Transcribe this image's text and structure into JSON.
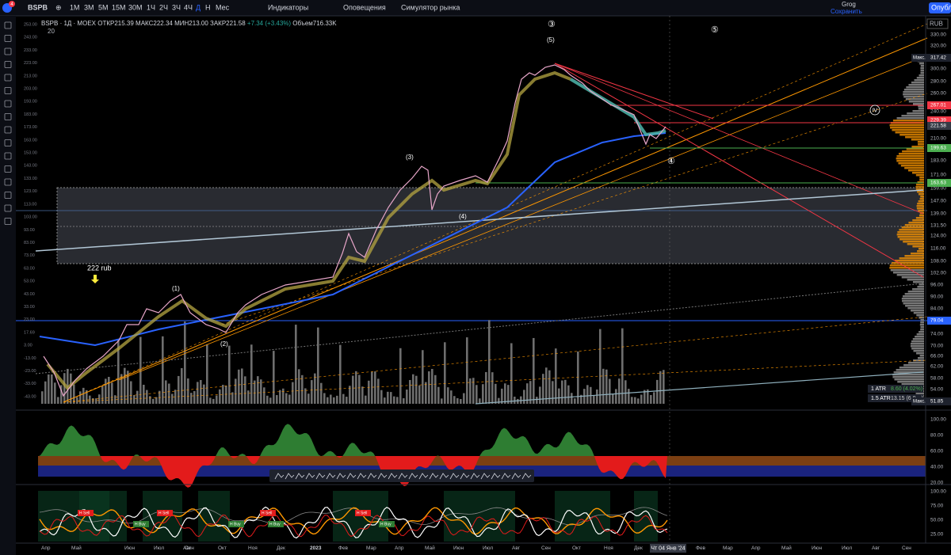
{
  "toolbar": {
    "badge": "4",
    "symbol": "BSPB",
    "intervals": [
      "1М",
      "3М",
      "5М",
      "15М",
      "30М",
      "1Ч",
      "2Ч",
      "3Ч",
      "4Ч",
      "Д",
      "Н",
      "Мес"
    ],
    "indicators": "Индикаторы",
    "alerts": "Оповещения",
    "replay": "Симулятор рынка",
    "user": "Grog",
    "save": "Сохранить",
    "publish": "Опубл"
  },
  "legend": {
    "title": "BSPB · 1Д · MOEX",
    "open": "ОТКР215.39",
    "high": "МАКС222.34",
    "low": "МИН213.00",
    "close": "ЗАКР221.58",
    "change": "+7.34 (+3.43%)",
    "volume": "Объем716.33K",
    "ema": "20"
  },
  "currency": "RUB",
  "price_axis": [
    "330.00",
    "320.00",
    "300.00",
    "280.00",
    "260.00",
    "240.00",
    "210.00",
    "183.00",
    "171.00",
    "159.00",
    "147.00",
    "139.00",
    "131.50",
    "124.00",
    "116.00",
    "108.00",
    "102.00",
    "96.00",
    "90.00",
    "84.00",
    "74.00",
    "70.00",
    "66.00",
    "62.00",
    "58.00",
    "54.00"
  ],
  "price_badges": [
    {
      "label": "Макс.",
      "value": "317.42"
    },
    {
      "value": "267.01"
    },
    {
      "value": "229.39"
    },
    {
      "value": "221.58"
    },
    {
      "value": "199.63"
    },
    {
      "value": "163.63"
    },
    {
      "value": "79.04"
    },
    {
      "label": "Макс.",
      "value": "51.85"
    }
  ],
  "left_scale": [
    "253.00",
    "243.00",
    "233.00",
    "223.00",
    "213.00",
    "203.00",
    "193.00",
    "183.00",
    "173.00",
    "163.00",
    "153.00",
    "143.00",
    "133.00",
    "123.00",
    "113.00",
    "103.00",
    "93.00",
    "83.00",
    "73.00",
    "63.00",
    "53.00",
    "43.00",
    "33.00",
    "23.00",
    "17.69",
    "3.00",
    "-13.00",
    "-23.00",
    "-33.00",
    "-43.00"
  ],
  "annotations": {
    "note": "222 rub",
    "w1": "(1)",
    "w2": "(2)",
    "w3": "(3)",
    "w4": "(4)",
    "w5": "(5)",
    "c3": "③",
    "c4": "④",
    "c5": "⑤",
    "c4big": "Ⅳ"
  },
  "atr": [
    {
      "label": "1 ATR",
      "value": "8.60 (4.02%)"
    },
    {
      "label": "1.5 ATR",
      "value": "13.15 (6.0…)"
    }
  ],
  "pane1_axis": [
    "100.00",
    "80.00",
    "60.00",
    "40.00",
    "20.00"
  ],
  "pane2_axis": [
    "100.00",
    "75.00",
    "50.00",
    "25.00"
  ],
  "signals": [
    "H Sell",
    "H Buy",
    "H Sell",
    "H Buy",
    "H Sell",
    "H Buy",
    "H Sell",
    "H Buy"
  ],
  "time_axis": [
    "Апр",
    "Май",
    "Июн",
    "Июл",
    "Авг",
    "Сен",
    "Окт",
    "Ноя",
    "Дек",
    "2023",
    "Фев",
    "Мар",
    "Апр",
    "Май",
    "Июн",
    "Июл",
    "Авг",
    "Сен",
    "Окт",
    "Ноя",
    "Дек",
    "Фев",
    "Мар",
    "Апр",
    "Май",
    "Июн",
    "Июл",
    "Авг",
    "Сен"
  ],
  "crosshair_date": "Чт 04 Янв '24"
}
